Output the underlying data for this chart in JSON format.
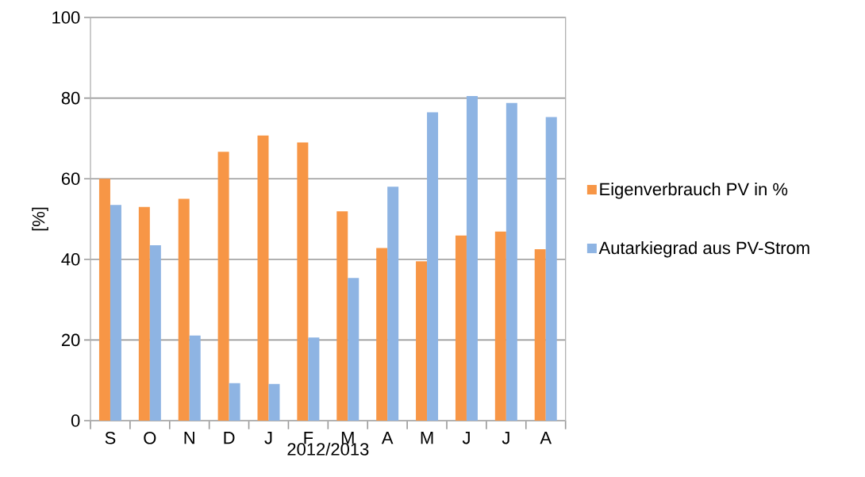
{
  "chart_data": {
    "type": "bar",
    "xlabel": "2012/2013",
    "ylabel": "[%]",
    "categories": [
      "S",
      "O",
      "N",
      "D",
      "J",
      "F",
      "M",
      "A",
      "M",
      "J",
      "J",
      "A"
    ],
    "series": [
      {
        "name": "Eigenverbrauch PV in %",
        "color": "#f79646",
        "values": [
          60,
          53,
          55,
          66.7,
          70.7,
          69,
          51.9,
          42.8,
          39.5,
          45.9,
          46.9,
          42.5
        ]
      },
      {
        "name": "Autarkiegrad aus PV-Strom",
        "color": "#8eb4e3",
        "values": [
          53.5,
          43.5,
          21.1,
          9.3,
          9.1,
          20.6,
          35.4,
          58,
          76.5,
          80.5,
          78.8,
          75.3
        ]
      }
    ],
    "ylim": [
      0,
      100
    ],
    "yticks": [
      0,
      20,
      40,
      60,
      80,
      100
    ],
    "grid": "y",
    "legend": "right"
  }
}
